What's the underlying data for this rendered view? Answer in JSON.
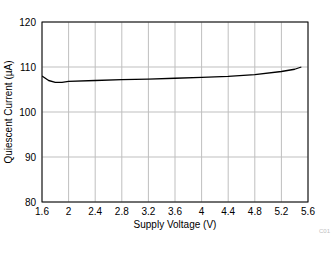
{
  "chart_data": {
    "type": "line",
    "x_label": "Supply Voltage (V)",
    "y_label": "Quiescent Current (µA)",
    "annotation": "C01",
    "x": [
      1.6,
      1.7,
      1.8,
      1.9,
      2.0,
      2.4,
      2.8,
      3.2,
      3.6,
      4.0,
      4.4,
      4.8,
      5.2,
      5.4,
      5.5
    ],
    "series": [
      {
        "name": "Quiescent Current",
        "color": "#000000",
        "values": [
          108.0,
          107.0,
          106.6,
          106.6,
          106.8,
          107.0,
          107.2,
          107.3,
          107.5,
          107.7,
          107.9,
          108.3,
          109.0,
          109.5,
          110.0
        ]
      }
    ],
    "xlim": [
      1.6,
      5.6
    ],
    "xticks": [
      1.6,
      2,
      2.4,
      2.8,
      3.2,
      3.6,
      4,
      4.4,
      4.8,
      5.2,
      5.6
    ],
    "ylim": [
      80,
      120
    ],
    "yticks": [
      80,
      90,
      100,
      110,
      120
    ],
    "grid": true
  }
}
